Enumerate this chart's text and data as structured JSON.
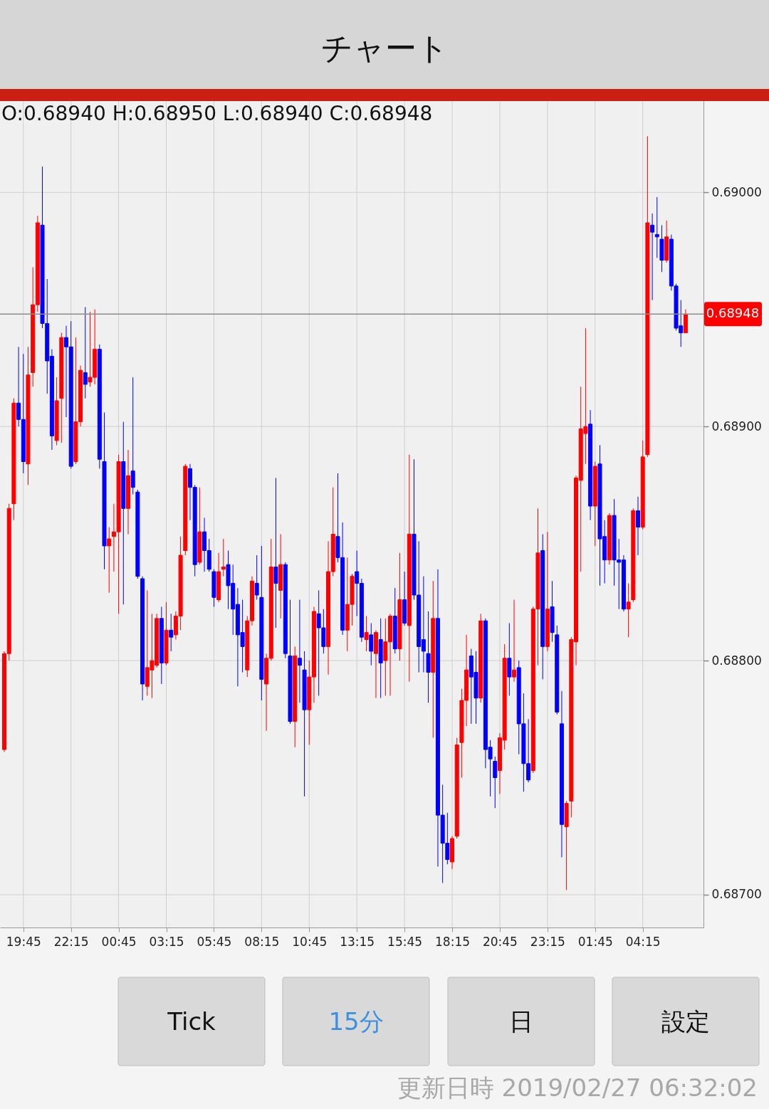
{
  "chart_data": {
    "type": "candlestick",
    "title": "チャート",
    "categories": [
      null,
      null,
      null,
      null,
      "19:45",
      null,
      null,
      null,
      null,
      null,
      null,
      null,
      null,
      null,
      "22:15",
      null,
      null,
      null,
      null,
      null,
      null,
      null,
      null,
      null,
      "00:45",
      null,
      null,
      null,
      null,
      null,
      null,
      null,
      null,
      null,
      "03:15",
      null,
      null,
      null,
      null,
      null,
      null,
      null,
      null,
      null,
      "05:45",
      null,
      null,
      null,
      null,
      null,
      null,
      null,
      null,
      null,
      "08:15",
      null,
      null,
      null,
      null,
      null,
      null,
      null,
      null,
      null,
      "10:45",
      null,
      null,
      null,
      null,
      null,
      null,
      null,
      null,
      null,
      "13:15",
      null,
      null,
      null,
      null,
      null,
      null,
      null,
      null,
      null,
      "15:45",
      null,
      null,
      null,
      null,
      null,
      null,
      null,
      null,
      null,
      "18:15",
      null,
      null,
      null,
      null,
      null,
      null,
      null,
      null,
      null,
      "20:45",
      null,
      null,
      null,
      null,
      null,
      null,
      null,
      null,
      null,
      "23:15",
      null,
      null,
      null,
      null,
      null,
      null,
      null,
      null,
      null,
      "01:45",
      null,
      null,
      null,
      null,
      null,
      null,
      null,
      null,
      null,
      "04:15",
      null,
      null,
      null,
      null,
      null,
      null,
      null,
      null,
      null
    ],
    "ohlc": [
      [
        0.68762,
        0.68804,
        0.68761,
        0.68803
      ],
      [
        0.68803,
        0.68867,
        0.688,
        0.68865
      ],
      [
        0.68867,
        0.68912,
        0.6886,
        0.6891
      ],
      [
        0.6891,
        0.68934,
        0.689,
        0.68903
      ],
      [
        0.68903,
        0.68931,
        0.6888,
        0.68885
      ],
      [
        0.68884,
        0.68934,
        0.68875,
        0.68922
      ],
      [
        0.68923,
        0.68968,
        0.68917,
        0.68952
      ],
      [
        0.68952,
        0.6899,
        0.68949,
        0.68987
      ],
      [
        0.68986,
        0.69011,
        0.68942,
        0.68944
      ],
      [
        0.68944,
        0.68963,
        0.68914,
        0.68928
      ],
      [
        0.6893,
        0.68933,
        0.6889,
        0.68896
      ],
      [
        0.68894,
        0.68921,
        0.68892,
        0.68911
      ],
      [
        0.68912,
        0.6894,
        0.68893,
        0.68938
      ],
      [
        0.68938,
        0.68943,
        0.68904,
        0.68934
      ],
      [
        0.68934,
        0.68945,
        0.68882,
        0.68883
      ],
      [
        0.68885,
        0.68938,
        0.68884,
        0.68902
      ],
      [
        0.68902,
        0.68926,
        0.689,
        0.68924
      ],
      [
        0.68923,
        0.68951,
        0.68912,
        0.68918
      ],
      [
        0.68919,
        0.68949,
        0.68917,
        0.68921
      ],
      [
        0.68921,
        0.6895,
        0.68918,
        0.68933
      ],
      [
        0.68933,
        0.68935,
        0.68882,
        0.68886
      ],
      [
        0.68885,
        0.68906,
        0.68839,
        0.68849
      ],
      [
        0.68849,
        0.68857,
        0.68829,
        0.68852
      ],
      [
        0.68853,
        0.68867,
        0.68838,
        0.68855
      ],
      [
        0.68855,
        0.68888,
        0.6882,
        0.68885
      ],
      [
        0.68885,
        0.68902,
        0.68824,
        0.68865
      ],
      [
        0.68865,
        0.6889,
        0.68854,
        0.68879
      ],
      [
        0.68881,
        0.68921,
        0.68871,
        0.68874
      ],
      [
        0.68872,
        0.68873,
        0.68835,
        0.68836
      ],
      [
        0.68835,
        0.68836,
        0.68783,
        0.6879
      ],
      [
        0.68789,
        0.6883,
        0.68785,
        0.68797
      ],
      [
        0.68796,
        0.6882,
        0.68784,
        0.688
      ],
      [
        0.68798,
        0.6882,
        0.68797,
        0.68818
      ],
      [
        0.68818,
        0.68823,
        0.6879,
        0.68799
      ],
      [
        0.68799,
        0.68825,
        0.68798,
        0.68813
      ],
      [
        0.68813,
        0.6882,
        0.68804,
        0.6881
      ],
      [
        0.68811,
        0.68821,
        0.68809,
        0.68819
      ],
      [
        0.68819,
        0.68853,
        0.68813,
        0.68845
      ],
      [
        0.68847,
        0.68884,
        0.68845,
        0.68883
      ],
      [
        0.68882,
        0.68884,
        0.6886,
        0.68874
      ],
      [
        0.68874,
        0.68875,
        0.68836,
        0.68841
      ],
      [
        0.68842,
        0.68874,
        0.68841,
        0.68855
      ],
      [
        0.68855,
        0.68861,
        0.68838,
        0.68847
      ],
      [
        0.68847,
        0.68852,
        0.68838,
        0.68839
      ],
      [
        0.68838,
        0.68839,
        0.68823,
        0.68827
      ],
      [
        0.68826,
        0.68846,
        0.68825,
        0.68838
      ],
      [
        0.68839,
        0.68852,
        0.68836,
        0.6884
      ],
      [
        0.68841,
        0.68847,
        0.68822,
        0.68832
      ],
      [
        0.68833,
        0.68841,
        0.68811,
        0.68822
      ],
      [
        0.68824,
        0.68831,
        0.68789,
        0.68811
      ],
      [
        0.68812,
        0.68826,
        0.68795,
        0.68806
      ],
      [
        0.68796,
        0.68819,
        0.68793,
        0.68817
      ],
      [
        0.68817,
        0.68836,
        0.68815,
        0.68834
      ],
      [
        0.68833,
        0.68845,
        0.68826,
        0.68828
      ],
      [
        0.68827,
        0.68849,
        0.68783,
        0.68792
      ],
      [
        0.6879,
        0.68803,
        0.6877,
        0.68801
      ],
      [
        0.68801,
        0.68852,
        0.688,
        0.6884
      ],
      [
        0.6884,
        0.68878,
        0.68814,
        0.68833
      ],
      [
        0.6883,
        0.68854,
        0.68818,
        0.68841
      ],
      [
        0.68841,
        0.68842,
        0.68801,
        0.68803
      ],
      [
        0.68802,
        0.68826,
        0.68773,
        0.68774
      ],
      [
        0.68774,
        0.68806,
        0.68763,
        0.68802
      ],
      [
        0.68801,
        0.68826,
        0.68782,
        0.68798
      ],
      [
        0.68796,
        0.68804,
        0.68742,
        0.68779
      ],
      [
        0.68779,
        0.688,
        0.68764,
        0.68793
      ],
      [
        0.68793,
        0.68823,
        0.68782,
        0.68821
      ],
      [
        0.6882,
        0.6883,
        0.68785,
        0.68814
      ],
      [
        0.68814,
        0.68822,
        0.68803,
        0.68806
      ],
      [
        0.68806,
        0.68851,
        0.68794,
        0.68838
      ],
      [
        0.68838,
        0.68874,
        0.68836,
        0.68854
      ],
      [
        0.68853,
        0.6888,
        0.68842,
        0.68844
      ],
      [
        0.68844,
        0.68859,
        0.68811,
        0.68813
      ],
      [
        0.68813,
        0.68844,
        0.68804,
        0.68824
      ],
      [
        0.68824,
        0.68837,
        0.68815,
        0.68836
      ],
      [
        0.68838,
        0.68847,
        0.68819,
        0.68833
      ],
      [
        0.68833,
        0.68835,
        0.68808,
        0.6881
      ],
      [
        0.68809,
        0.68819,
        0.68804,
        0.68812
      ],
      [
        0.68811,
        0.68816,
        0.68798,
        0.68804
      ],
      [
        0.68803,
        0.68813,
        0.68784,
        0.68812
      ],
      [
        0.68809,
        0.68818,
        0.68784,
        0.68799
      ],
      [
        0.688,
        0.68818,
        0.68785,
        0.68808
      ],
      [
        0.68808,
        0.6882,
        0.68785,
        0.68819
      ],
      [
        0.68819,
        0.68831,
        0.68803,
        0.68805
      ],
      [
        0.68805,
        0.68846,
        0.688,
        0.68826
      ],
      [
        0.68826,
        0.68838,
        0.68815,
        0.68816
      ],
      [
        0.68815,
        0.68888,
        0.68791,
        0.68854
      ],
      [
        0.68854,
        0.68886,
        0.68826,
        0.68828
      ],
      [
        0.68828,
        0.68851,
        0.68795,
        0.68806
      ],
      [
        0.68809,
        0.68836,
        0.68795,
        0.68804
      ],
      [
        0.68803,
        0.68821,
        0.68782,
        0.68795
      ],
      [
        0.68795,
        0.68834,
        0.68767,
        0.68818
      ],
      [
        0.68818,
        0.68839,
        0.68712,
        0.68734
      ],
      [
        0.68734,
        0.68747,
        0.68705,
        0.68722
      ],
      [
        0.68722,
        0.68735,
        0.68713,
        0.68715
      ],
      [
        0.68714,
        0.68725,
        0.68711,
        0.68724
      ],
      [
        0.68725,
        0.68767,
        0.68724,
        0.68764
      ],
      [
        0.68765,
        0.68788,
        0.6875,
        0.68783
      ],
      [
        0.68783,
        0.68811,
        0.68772,
        0.68796
      ],
      [
        0.68802,
        0.68805,
        0.68773,
        0.68793
      ],
      [
        0.68795,
        0.68804,
        0.68773,
        0.68784
      ],
      [
        0.68784,
        0.6882,
        0.68782,
        0.68817
      ],
      [
        0.68817,
        0.68818,
        0.68754,
        0.68762
      ],
      [
        0.68763,
        0.68766,
        0.68742,
        0.68758
      ],
      [
        0.68757,
        0.68759,
        0.68737,
        0.6875
      ],
      [
        0.68753,
        0.68769,
        0.68743,
        0.68767
      ],
      [
        0.68766,
        0.68807,
        0.68762,
        0.68801
      ],
      [
        0.68801,
        0.68816,
        0.68785,
        0.68793
      ],
      [
        0.68793,
        0.68826,
        0.68791,
        0.68796
      ],
      [
        0.68797,
        0.688,
        0.6876,
        0.68773
      ],
      [
        0.68773,
        0.68786,
        0.68744,
        0.68756
      ],
      [
        0.68756,
        0.68775,
        0.68748,
        0.68749
      ],
      [
        0.68753,
        0.68823,
        0.68752,
        0.68822
      ],
      [
        0.68822,
        0.68865,
        0.68798,
        0.68846
      ],
      [
        0.68847,
        0.68854,
        0.68792,
        0.68806
      ],
      [
        0.68806,
        0.68855,
        0.68804,
        0.68822
      ],
      [
        0.68823,
        0.68834,
        0.68808,
        0.68812
      ],
      [
        0.68811,
        0.68815,
        0.68777,
        0.68778
      ],
      [
        0.68773,
        0.68787,
        0.68716,
        0.6873
      ],
      [
        0.68729,
        0.6874,
        0.68702,
        0.68739
      ],
      [
        0.6874,
        0.6881,
        0.68733,
        0.68809
      ],
      [
        0.68808,
        0.68879,
        0.68798,
        0.68878
      ],
      [
        0.68877,
        0.68917,
        0.68838,
        0.68899
      ],
      [
        0.68897,
        0.68942,
        0.68884,
        0.689
      ],
      [
        0.68901,
        0.68907,
        0.6886,
        0.68866
      ],
      [
        0.68866,
        0.68885,
        0.68849,
        0.68883
      ],
      [
        0.68884,
        0.68892,
        0.68832,
        0.68852
      ],
      [
        0.68853,
        0.6886,
        0.68833,
        0.68843
      ],
      [
        0.68843,
        0.68863,
        0.68841,
        0.68862
      ],
      [
        0.68862,
        0.68869,
        0.68832,
        0.68843
      ],
      [
        0.68843,
        0.68852,
        0.68822,
        0.68842
      ],
      [
        0.68843,
        0.68845,
        0.68821,
        0.68822
      ],
      [
        0.68822,
        0.68833,
        0.6881,
        0.68825
      ],
      [
        0.68826,
        0.68865,
        0.68825,
        0.68864
      ],
      [
        0.68864,
        0.6887,
        0.68845,
        0.68857
      ],
      [
        0.68857,
        0.68894,
        0.68856,
        0.68887
      ],
      [
        0.68888,
        0.69024,
        0.68887,
        0.68987
      ],
      [
        0.68986,
        0.68991,
        0.68954,
        0.68983
      ],
      [
        0.68982,
        0.68998,
        0.68972,
        0.68981
      ],
      [
        0.6898,
        0.68986,
        0.68966,
        0.68971
      ],
      [
        0.68971,
        0.68988,
        0.6897,
        0.68981
      ],
      [
        0.6898,
        0.68982,
        0.68958,
        0.6896
      ],
      [
        0.6896,
        0.68961,
        0.68941,
        0.68942
      ],
      [
        0.68943,
        0.68954,
        0.68934,
        0.6894
      ],
      [
        0.6894,
        0.6895,
        0.6894,
        0.68948
      ]
    ],
    "colors": [
      "#ff0000",
      "#ff0000",
      "#ff0000",
      "#0000ff",
      "#0000ff",
      "#ff0000",
      "#ff0000",
      "#ff0000",
      "#0000ff",
      "#0000ff",
      "#0000ff",
      "#ff0000",
      "#ff0000",
      "#0000ff",
      "#0000ff",
      "#ff0000",
      "#ff0000",
      "#0000ff",
      "#ff0000",
      "#ff0000",
      "#0000ff",
      "#0000ff",
      "#ff0000",
      "#ff0000",
      "#ff0000",
      "#0000ff",
      "#ff0000",
      "#0000ff",
      "#0000ff",
      "#0000ff",
      "#ff0000",
      "#ff0000",
      "#ff0000",
      "#0000ff",
      "#ff0000",
      "#0000ff",
      "#ff0000",
      "#ff0000",
      "#ff0000",
      "#0000ff",
      "#0000ff",
      "#ff0000",
      "#0000ff",
      "#0000ff",
      "#0000ff",
      "#ff0000",
      "#ff0000",
      "#0000ff",
      "#0000ff",
      "#0000ff",
      "#0000ff",
      "#ff0000",
      "#ff0000",
      "#0000ff",
      "#0000ff",
      "#ff0000",
      "#ff0000",
      "#0000ff",
      "#ff0000",
      "#0000ff",
      "#0000ff",
      "#ff0000",
      "#0000ff",
      "#0000ff",
      "#ff0000",
      "#ff0000",
      "#0000ff",
      "#0000ff",
      "#ff0000",
      "#ff0000",
      "#0000ff",
      "#0000ff",
      "#ff0000",
      "#ff0000",
      "#0000ff",
      "#0000ff",
      "#ff0000",
      "#0000ff",
      "#ff0000",
      "#0000ff",
      "#ff0000",
      "#ff0000",
      "#0000ff",
      "#ff0000",
      "#0000ff",
      "#ff0000",
      "#0000ff",
      "#0000ff",
      "#0000ff",
      "#0000ff",
      "#ff0000",
      "#0000ff",
      "#0000ff",
      "#0000ff",
      "#ff0000",
      "#ff0000",
      "#ff0000",
      "#ff0000",
      "#0000ff",
      "#0000ff",
      "#ff0000",
      "#0000ff",
      "#0000ff",
      "#0000ff",
      "#ff0000",
      "#ff0000",
      "#0000ff",
      "#ff0000",
      "#0000ff",
      "#0000ff",
      "#0000ff",
      "#ff0000",
      "#ff0000",
      "#0000ff",
      "#ff0000",
      "#0000ff",
      "#0000ff",
      "#0000ff",
      "#ff0000",
      "#ff0000",
      "#ff0000",
      "#ff0000",
      "#ff0000",
      "#0000ff",
      "#ff0000",
      "#0000ff",
      "#0000ff",
      "#ff0000",
      "#0000ff",
      "#0000ff",
      "#0000ff",
      "#ff0000",
      "#ff0000",
      "#0000ff",
      "#ff0000",
      "#ff0000",
      "#0000ff",
      "#0000ff",
      "#0000ff",
      "#ff0000",
      "#0000ff",
      "#0000ff",
      "#0000ff",
      "#ff0000"
    ],
    "ylim": [
      0.68686,
      0.69039
    ],
    "yticks": [
      {
        "value": 0.687,
        "label": "0.68700"
      },
      {
        "value": 0.688,
        "label": "0.68800"
      },
      {
        "value": 0.689,
        "label": "0.68900"
      },
      {
        "value": 0.69,
        "label": "0.69000"
      }
    ],
    "grid": true,
    "ref_lines": [
      {
        "axis": "y",
        "value": 0.68948,
        "label": "0.68948",
        "color": "#8c8c8c"
      }
    ],
    "annotations": [
      "O:0.68940 H:0.68950 L:0.68940 C:0.68948",
      "Tick",
      "15分",
      "日",
      "設定",
      "更新日時 2019/02/27 06:32:02"
    ]
  }
}
